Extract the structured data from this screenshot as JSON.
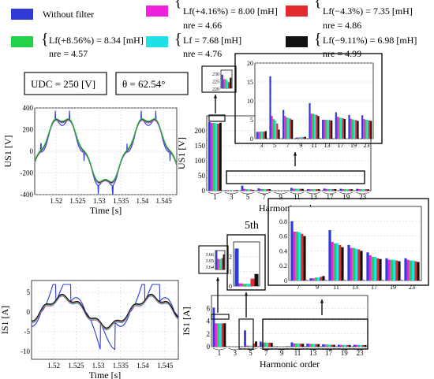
{
  "legend": {
    "entries": [
      {
        "color": "#2e3bd6",
        "label": "Without filter"
      },
      {
        "color": "#ee22dd",
        "label": "Lf(+4.16%) = 8.00 [mH]",
        "n_label": "nre = 4.66"
      },
      {
        "color": "#e42a2f",
        "label": "Lf(−4.3%) = 7.35 [mH]",
        "n_label": "nre = 4.86"
      },
      {
        "color": "#22d34a",
        "label": "Lf(+8.56%) = 8.34 [mH]",
        "n_label": "nre = 4.57"
      },
      {
        "color": "#1fe0e2",
        "label": "Lf = 7.68 [mH]",
        "n_label": "nre = 4.76"
      },
      {
        "color": "#111111",
        "label": "Lf(−9.11%) = 6.98 [mH]",
        "n_label": "nre = 4.99"
      }
    ]
  },
  "params": {
    "udc": "UDC = 250 [V]",
    "theta": "θ = 62.54°"
  },
  "fifth_label": "5th",
  "chart_data": [
    {
      "id": "u_time",
      "type": "line",
      "ylabel": "US1 [V]",
      "xlabel": "Time [s]",
      "xlim": [
        1.515,
        1.548
      ],
      "ylim": [
        -400,
        400
      ],
      "xticks": [
        1.52,
        1.525,
        1.53,
        1.535,
        1.54,
        1.545
      ],
      "xtick_labels": [
        "1.52",
        "1.525",
        "1.53",
        "1.535",
        "1.54",
        "1.545"
      ],
      "yticks": [
        -400,
        -200,
        0,
        200,
        400
      ],
      "ytick_labels": [
        "-400",
        "-200",
        "0",
        "200",
        "400"
      ],
      "grid": true,
      "waveform": {
        "f": 50,
        "phase_deg": 65,
        "amplitude": 300,
        "fifth_amp": -40
      }
    },
    {
      "id": "i_time",
      "type": "line",
      "ylabel": "IS1 [A]",
      "xlabel": "Time [s]",
      "xlim": [
        1.515,
        1.548
      ],
      "ylim": [
        -12,
        8
      ],
      "xticks": [
        1.52,
        1.525,
        1.53,
        1.535,
        1.54,
        1.545
      ],
      "xtick_labels": [
        "1.52",
        "1.525",
        "1.53",
        "1.535",
        "1.54",
        "1.545"
      ],
      "yticks": [
        -10,
        -5,
        0,
        5
      ],
      "ytick_labels": [
        "-10",
        "-5",
        "0",
        "5"
      ],
      "grid": true
    },
    {
      "id": "u_spec",
      "type": "bar",
      "ylabel": "US1 [V]",
      "xlabel": "Harmonic order",
      "categories": [
        "1",
        "3",
        "5",
        "7",
        "9",
        "11",
        "13",
        "17",
        "19",
        "23"
      ],
      "ylim": [
        0,
        250
      ],
      "yticks": [
        0,
        50,
        100,
        150,
        200
      ],
      "ytick_labels": [
        "0",
        "50",
        "100",
        "150",
        "200"
      ],
      "grid": true,
      "series": [
        {
          "color": "#2e3bd6",
          "values": [
            229,
            1.8,
            16.5,
            7.6,
            0.3,
            9.4,
            5.0,
            7.0,
            6.3,
            6.2
          ]
        },
        {
          "color": "#ee22dd",
          "values": [
            226,
            1.8,
            6.0,
            6.0,
            0.3,
            6.6,
            5.0,
            5.8,
            5.3,
            5.2
          ]
        },
        {
          "color": "#22d34a",
          "values": [
            226,
            1.9,
            5.2,
            5.6,
            0.4,
            6.6,
            5.0,
            5.6,
            5.1,
            5.0
          ]
        },
        {
          "color": "#1fe0e2",
          "values": [
            225,
            1.9,
            4.8,
            5.5,
            0.4,
            6.4,
            5.0,
            5.5,
            5.0,
            5.0
          ]
        },
        {
          "color": "#e42a2f",
          "values": [
            224,
            1.9,
            4.0,
            5.3,
            0.4,
            6.3,
            4.9,
            5.4,
            4.9,
            4.8
          ]
        },
        {
          "color": "#111111",
          "values": [
            227,
            2.0,
            2.4,
            5.0,
            0.5,
            6.0,
            4.8,
            5.2,
            4.7,
            4.7
          ]
        }
      ]
    },
    {
      "id": "u_zoom_fund",
      "type": "bar",
      "categories": [
        "1"
      ],
      "ylim": [
        220,
        232
      ],
      "yticks": [
        220,
        225,
        230
      ],
      "ytick_labels": [
        "220",
        "225",
        "230"
      ],
      "grid": true,
      "series_ref": "u_spec",
      "category_index": [
        0
      ]
    },
    {
      "id": "u_zoom_harm",
      "type": "bar",
      "categories": [
        "3",
        "5",
        "7",
        "9",
        "11",
        "13",
        "17",
        "19",
        "23"
      ],
      "ylim": [
        0,
        20
      ],
      "yticks": [
        0,
        5,
        10,
        15,
        20
      ],
      "ytick_labels": [
        "0",
        "5",
        "10",
        "15",
        "20"
      ],
      "grid": true,
      "series_ref": "u_spec",
      "category_index": [
        1,
        2,
        3,
        4,
        5,
        6,
        7,
        8,
        9
      ]
    },
    {
      "id": "i_spec",
      "type": "bar",
      "ylabel": "IS1 [A]",
      "xlabel": "Harmonic order",
      "categories": [
        "1",
        "3",
        "5",
        "7",
        "9",
        "11",
        "13",
        "17",
        "19",
        "23"
      ],
      "ylim": [
        0,
        8
      ],
      "yticks": [
        0,
        2,
        4,
        6
      ],
      "ytick_labels": [
        "0",
        "2",
        "4",
        "6"
      ],
      "grid": true,
      "series": [
        {
          "color": "#2e3bd6",
          "values": [
            6.1,
            0.01,
            2.55,
            0.8,
            0.03,
            0.68,
            0.48,
            0.38,
            0.3,
            0.3
          ]
        },
        {
          "color": "#ee22dd",
          "values": [
            3.652,
            0.01,
            0.18,
            0.66,
            0.03,
            0.52,
            0.44,
            0.34,
            0.28,
            0.28
          ]
        },
        {
          "color": "#22d34a",
          "values": [
            3.651,
            0.01,
            0.15,
            0.66,
            0.04,
            0.5,
            0.44,
            0.32,
            0.28,
            0.27
          ]
        },
        {
          "color": "#1fe0e2",
          "values": [
            3.652,
            0.01,
            0.16,
            0.65,
            0.04,
            0.5,
            0.43,
            0.32,
            0.28,
            0.27
          ]
        },
        {
          "color": "#e42a2f",
          "values": [
            3.653,
            0.01,
            0.5,
            0.63,
            0.05,
            0.48,
            0.42,
            0.3,
            0.27,
            0.26
          ]
        },
        {
          "color": "#111111",
          "values": [
            3.659,
            0.01,
            0.82,
            0.6,
            0.06,
            0.45,
            0.4,
            0.29,
            0.26,
            0.25
          ]
        }
      ]
    },
    {
      "id": "i_zoom_fund",
      "type": "bar",
      "categories": [
        "1"
      ],
      "ylim": [
        3.635,
        3.665
      ],
      "yticks": [
        3.64,
        3.65,
        3.66
      ],
      "ytick_labels": [
        "3.64",
        "3.65",
        "3.66"
      ],
      "grid": true,
      "series_ref": "i_spec",
      "category_index": [
        0
      ]
    },
    {
      "id": "i_zoom_5",
      "type": "bar",
      "categories": [
        "5"
      ],
      "ylim": [
        0,
        3
      ],
      "yticks": [
        0,
        1,
        2
      ],
      "ytick_labels": [
        "0",
        "1",
        "2"
      ],
      "grid": true,
      "series_ref": "i_spec",
      "category_index": [
        2
      ]
    },
    {
      "id": "i_zoom_harm",
      "type": "bar",
      "categories": [
        "7",
        "9",
        "11",
        "13",
        "17",
        "19",
        "23"
      ],
      "ylim": [
        0,
        1
      ],
      "yticks": [
        0,
        0.2,
        0.4,
        0.6,
        0.8
      ],
      "ytick_labels": [
        "0",
        "0.2",
        "0.4",
        "0.6",
        "0.8"
      ],
      "grid": true,
      "series_ref": "i_spec",
      "category_index": [
        3,
        4,
        5,
        6,
        7,
        8,
        9
      ]
    }
  ]
}
